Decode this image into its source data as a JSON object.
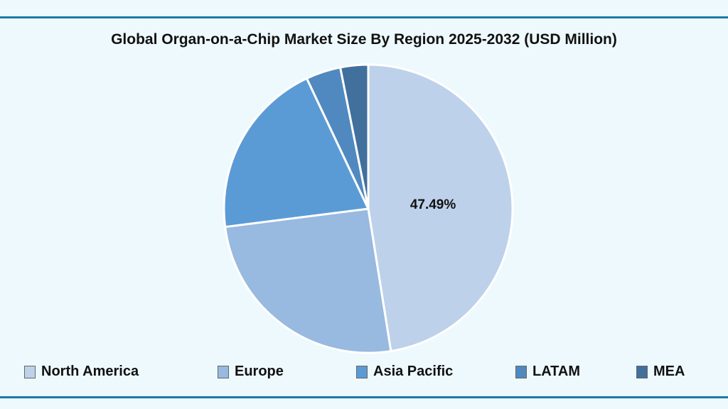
{
  "chart_data": {
    "type": "pie",
    "title": "Global Organ-on-a-Chip Market Size By Region 2025-2032 (USD Million)",
    "categories": [
      "North America",
      "Europe",
      "Asia Pacific",
      "LATAM",
      "MEA"
    ],
    "values": [
      47.49,
      25.5,
      20.0,
      3.9,
      3.11
    ],
    "colors": [
      "#bed1ea",
      "#98b9e0",
      "#5b9bd5",
      "#4f89c0",
      "#41709d"
    ],
    "data_labels": [
      "47.49%",
      "",
      "",
      "",
      ""
    ],
    "legend_position": "bottom"
  },
  "colors": {
    "background": "#eef9fd",
    "rule": "#1b7aa6"
  }
}
